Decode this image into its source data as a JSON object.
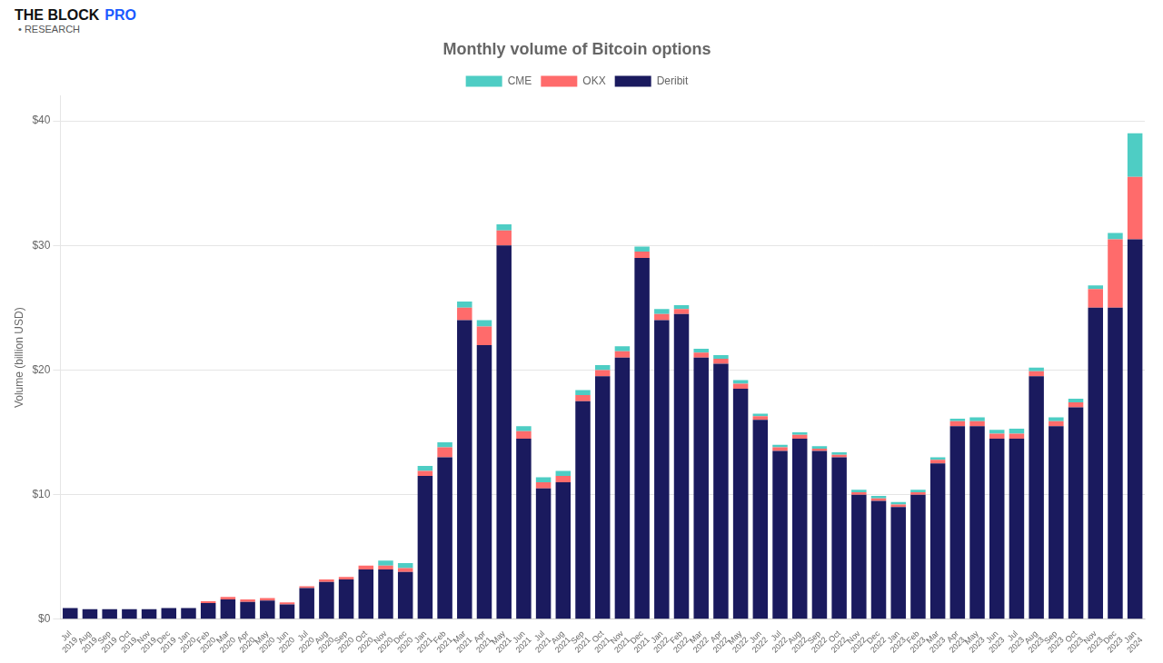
{
  "chart_data": {
    "type": "bar",
    "stacked": true,
    "title": "Monthly volume of Bitcoin options",
    "ylabel": "Volume (billion USD)",
    "annotations": [
      "THE BLOCK",
      "PRO",
      "• RESEARCH"
    ],
    "legend": "top",
    "grid": true,
    "ylim": [
      0,
      42
    ],
    "yticks": [
      {
        "value": 0,
        "label": "$0"
      },
      {
        "value": 10,
        "label": "$10"
      },
      {
        "value": 20,
        "label": "$20"
      },
      {
        "value": 30,
        "label": "$30"
      },
      {
        "value": 40,
        "label": "$40"
      }
    ],
    "categories": [
      "Jul\n2019",
      "Aug\n2019",
      "Sep\n2019",
      "Oct\n2019",
      "Nov\n2019",
      "Dec\n2019",
      "Jan\n2020",
      "Feb\n2020",
      "Mar\n2020",
      "Apr\n2020",
      "May\n2020",
      "Jun\n2020",
      "Jul\n2020",
      "Aug\n2020",
      "Sep\n2020",
      "Oct\n2020",
      "Nov\n2020",
      "Dec\n2020",
      "Jan\n2021",
      "Feb\n2021",
      "Mar\n2021",
      "Apr\n2021",
      "May\n2021",
      "Jun\n2021",
      "Jul\n2021",
      "Aug\n2021",
      "Sep\n2021",
      "Oct\n2021",
      "Nov\n2021",
      "Dec\n2021",
      "Jan\n2022",
      "Feb\n2022",
      "Mar\n2022",
      "Apr\n2022",
      "May\n2022",
      "Jun\n2022",
      "Jul\n2022",
      "Aug\n2022",
      "Sep\n2022",
      "Oct\n2022",
      "Nov\n2022",
      "Dec\n2022",
      "Jan\n2023",
      "Feb\n2023",
      "Mar\n2023",
      "Apr\n2023",
      "May\n2023",
      "Jun\n2023",
      "Jul\n2023",
      "Aug\n2023",
      "Sep\n2023",
      "Oct\n2023",
      "Nov\n2023",
      "Dec\n2023",
      "Jan\n2024"
    ],
    "series": [
      {
        "name": "Deribit",
        "color": "#1a1a5e",
        "values": [
          0.9,
          0.8,
          0.8,
          0.8,
          0.8,
          0.9,
          0.9,
          1.3,
          1.6,
          1.4,
          1.5,
          1.2,
          2.5,
          3.0,
          3.2,
          4.0,
          4.0,
          3.8,
          11.5,
          13.0,
          24.0,
          22.0,
          30.0,
          14.5,
          10.5,
          11.0,
          17.5,
          19.5,
          21.0,
          29.0,
          24.0,
          24.5,
          21.0,
          20.5,
          18.5,
          16.0,
          13.5,
          14.5,
          13.5,
          13.0,
          10.0,
          9.5,
          9.0,
          10.0,
          12.5,
          15.5,
          15.5,
          14.5,
          14.5,
          19.5,
          15.5,
          17.0,
          25.0,
          25.0,
          30.5
        ]
      },
      {
        "name": "OKX",
        "color": "#ff6b6b",
        "values": [
          0.0,
          0.0,
          0.0,
          0.0,
          0.0,
          0.0,
          0.0,
          0.15,
          0.2,
          0.2,
          0.2,
          0.15,
          0.15,
          0.2,
          0.2,
          0.3,
          0.3,
          0.3,
          0.4,
          0.8,
          1.0,
          1.5,
          1.2,
          0.6,
          0.5,
          0.5,
          0.5,
          0.5,
          0.5,
          0.5,
          0.5,
          0.4,
          0.4,
          0.4,
          0.4,
          0.3,
          0.3,
          0.3,
          0.2,
          0.2,
          0.2,
          0.2,
          0.2,
          0.2,
          0.3,
          0.4,
          0.4,
          0.4,
          0.4,
          0.4,
          0.4,
          0.4,
          1.5,
          5.5,
          5.0
        ]
      },
      {
        "name": "CME",
        "color": "#4ecdc4",
        "values": [
          0.0,
          0.0,
          0.0,
          0.0,
          0.0,
          0.0,
          0.0,
          0.0,
          0.0,
          0.0,
          0.0,
          0.0,
          0.0,
          0.0,
          0.0,
          0.0,
          0.4,
          0.4,
          0.4,
          0.4,
          0.5,
          0.5,
          0.5,
          0.4,
          0.4,
          0.4,
          0.4,
          0.4,
          0.4,
          0.4,
          0.4,
          0.3,
          0.3,
          0.3,
          0.3,
          0.2,
          0.2,
          0.2,
          0.2,
          0.2,
          0.2,
          0.2,
          0.2,
          0.2,
          0.2,
          0.2,
          0.3,
          0.3,
          0.4,
          0.3,
          0.3,
          0.3,
          0.3,
          0.5,
          3.5
        ]
      }
    ]
  }
}
